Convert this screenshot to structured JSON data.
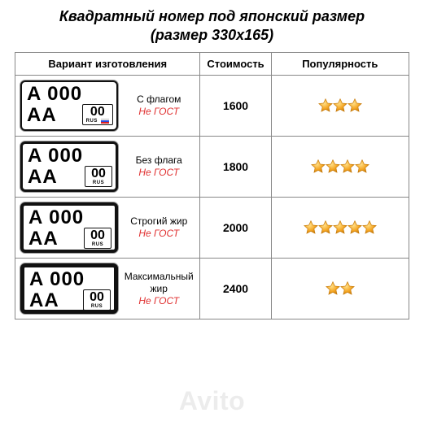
{
  "title": "Квадратный номер под японский размер",
  "subtitle": "(размер 330х165)",
  "headers": {
    "make": "Вариант изготовления",
    "cost": "Стоимость",
    "pop": "Популярность"
  },
  "not_gost": "Не ГОСТ",
  "plate_sample": {
    "top": "A 000",
    "series": "AA",
    "region_code": "00",
    "rus": "RUS"
  },
  "rows": [
    {
      "label": "С флагом",
      "cost": "1600",
      "stars": 3,
      "plate_border": "br-thin",
      "show_flag": true
    },
    {
      "label": "Без флага",
      "cost": "1800",
      "stars": 4,
      "plate_border": "br-med",
      "show_flag": false
    },
    {
      "label": "Строгий жир",
      "cost": "2000",
      "stars": 5,
      "plate_border": "br-thick",
      "show_flag": false
    },
    {
      "label": "Максимальный жир",
      "cost": "2400",
      "stars": 2,
      "plate_border": "br-xthick",
      "show_flag": false
    }
  ],
  "star_colors": {
    "fill": "#f5a623",
    "stroke": "#c67a0a",
    "highlight": "#ffe08a"
  },
  "text_colors": {
    "not_gost": "#e03030"
  },
  "watermark": "Avito"
}
